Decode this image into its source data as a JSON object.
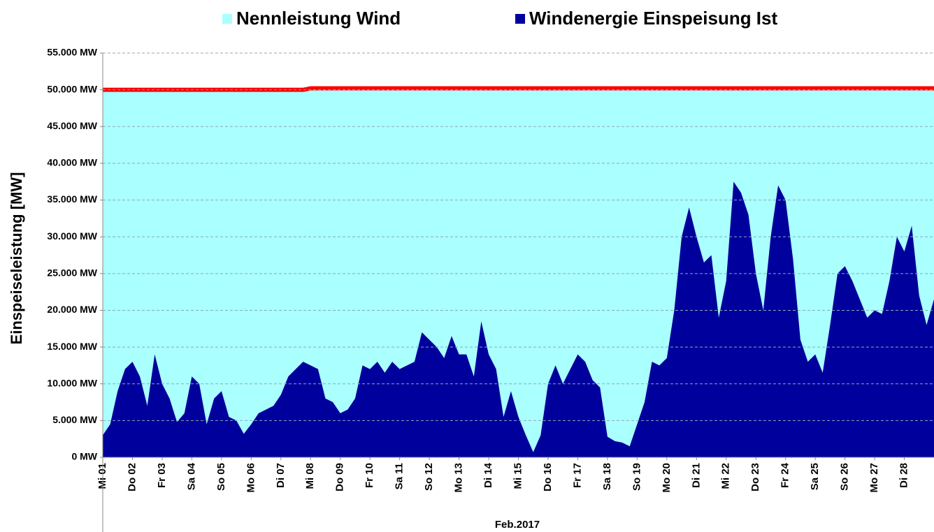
{
  "chart_data": {
    "type": "area",
    "y_label": "Einspeiseleistung  [MW]",
    "x_label": "Feb.2017",
    "x": [
      0,
      0.25,
      0.5,
      0.75,
      1,
      1.25,
      1.5,
      1.75,
      2,
      2.25,
      2.5,
      2.75,
      3,
      3.25,
      3.5,
      3.75,
      4,
      4.25,
      4.5,
      4.75,
      5,
      5.25,
      5.5,
      5.75,
      6,
      6.25,
      6.5,
      6.75,
      7,
      7.25,
      7.5,
      7.75,
      8,
      8.25,
      8.5,
      8.75,
      9,
      9.25,
      9.5,
      9.75,
      10,
      10.25,
      10.5,
      10.75,
      11,
      11.25,
      11.5,
      11.75,
      12,
      12.25,
      12.5,
      12.75,
      13,
      13.25,
      13.5,
      13.75,
      14,
      14.25,
      14.5,
      14.75,
      15,
      15.25,
      15.5,
      15.75,
      16,
      16.25,
      16.5,
      16.75,
      17,
      17.25,
      17.5,
      17.75,
      18,
      18.25,
      18.5,
      18.75,
      19,
      19.25,
      19.5,
      19.75,
      20,
      20.25,
      20.5,
      20.75,
      21,
      21.25,
      21.5,
      21.75,
      22,
      22.25,
      22.5,
      22.75,
      23,
      23.25,
      23.5,
      23.75,
      24,
      24.25,
      24.5,
      24.75,
      25,
      25.25,
      25.5,
      25.75,
      26,
      26.25,
      26.5,
      26.75,
      27,
      27.25,
      27.5,
      27.75,
      28
    ],
    "xlim": [
      0,
      28
    ],
    "xticks": [
      {
        "value": 0,
        "label": "Mi 01"
      },
      {
        "value": 1,
        "label": "Do 02"
      },
      {
        "value": 2,
        "label": "Fr 03"
      },
      {
        "value": 3,
        "label": "Sa 04"
      },
      {
        "value": 4,
        "label": "So 05"
      },
      {
        "value": 5,
        "label": "Mo 06"
      },
      {
        "value": 6,
        "label": "Di 07"
      },
      {
        "value": 7,
        "label": "Mi 08"
      },
      {
        "value": 8,
        "label": "Do 09"
      },
      {
        "value": 9,
        "label": "Fr 10"
      },
      {
        "value": 10,
        "label": "Sa 11"
      },
      {
        "value": 11,
        "label": "So 12"
      },
      {
        "value": 12,
        "label": "Mo 13"
      },
      {
        "value": 13,
        "label": "Di 14"
      },
      {
        "value": 14,
        "label": "Mi 15"
      },
      {
        "value": 15,
        "label": "Do 16"
      },
      {
        "value": 16,
        "label": "Fr 17"
      },
      {
        "value": 17,
        "label": "Sa 18"
      },
      {
        "value": 18,
        "label": "So 19"
      },
      {
        "value": 19,
        "label": "Mo 20"
      },
      {
        "value": 20,
        "label": "Di 21"
      },
      {
        "value": 21,
        "label": "Mi 22"
      },
      {
        "value": 22,
        "label": "Do 23"
      },
      {
        "value": 23,
        "label": "Fr 24"
      },
      {
        "value": 24,
        "label": "Sa 25"
      },
      {
        "value": 25,
        "label": "So 26"
      },
      {
        "value": 26,
        "label": "Mo 27"
      },
      {
        "value": 27,
        "label": "Di 28"
      }
    ],
    "ylim": [
      0,
      55000
    ],
    "yticks": [
      {
        "value": 0,
        "label": "0 MW"
      },
      {
        "value": 5000,
        "label": "5.000 MW"
      },
      {
        "value": 10000,
        "label": "10.000 MW"
      },
      {
        "value": 15000,
        "label": "15.000 MW"
      },
      {
        "value": 20000,
        "label": "20.000 MW"
      },
      {
        "value": 25000,
        "label": "25.000 MW"
      },
      {
        "value": 30000,
        "label": "30.000 MW"
      },
      {
        "value": 35000,
        "label": "35.000 MW"
      },
      {
        "value": 40000,
        "label": "40.000 MW"
      },
      {
        "value": 45000,
        "label": "45.000 MW"
      },
      {
        "value": 50000,
        "label": "50.000 MW"
      },
      {
        "value": 55000,
        "label": "55.000 MW"
      }
    ],
    "grid": true,
    "series": [
      {
        "name": "Nennleistung Wind",
        "color": "#aaffff",
        "line_color": "#ff0000",
        "values": [
          50000,
          50000,
          50000,
          50000,
          50000,
          50000,
          50000,
          50000,
          50000,
          50000,
          50000,
          50000,
          50000,
          50000,
          50000,
          50000,
          50000,
          50000,
          50000,
          50000,
          50000,
          50000,
          50000,
          50000,
          50000,
          50000,
          50000,
          50000,
          50200,
          50200,
          50200,
          50200,
          50200,
          50200,
          50200,
          50200,
          50200,
          50200,
          50200,
          50200,
          50200,
          50200,
          50200,
          50200,
          50200,
          50200,
          50200,
          50200,
          50200,
          50200,
          50200,
          50200,
          50200,
          50200,
          50200,
          50200,
          50200,
          50200,
          50200,
          50200,
          50200,
          50200,
          50200,
          50200,
          50200,
          50200,
          50200,
          50200,
          50200,
          50200,
          50200,
          50200,
          50200,
          50200,
          50200,
          50200,
          50200,
          50200,
          50200,
          50200,
          50200,
          50200,
          50200,
          50200,
          50200,
          50200,
          50200,
          50200,
          50200,
          50200,
          50200,
          50200,
          50200,
          50200,
          50200,
          50200,
          50200,
          50200,
          50200,
          50200,
          50200,
          50200,
          50200,
          50200,
          50200,
          50200,
          50200,
          50200,
          50200,
          50200,
          50200,
          50200,
          50200
        ]
      },
      {
        "name": "Windenergie Einspeisung Ist",
        "color": "#00009c",
        "values": [
          3000,
          4500,
          9000,
          12000,
          13000,
          11000,
          7000,
          14000,
          10000,
          8000,
          4800,
          6000,
          11000,
          10000,
          4500,
          8000,
          9000,
          5500,
          5000,
          3200,
          4500,
          6000,
          6500,
          7000,
          8500,
          11000,
          12000,
          13000,
          12500,
          12000,
          8000,
          7500,
          6000,
          6500,
          8000,
          12500,
          12000,
          13000,
          11500,
          13000,
          12000,
          12500,
          13000,
          17000,
          16000,
          15000,
          13500,
          16500,
          14000,
          14000,
          11000,
          18500,
          14000,
          12000,
          5500,
          9000,
          5500,
          3000,
          700,
          3000,
          10000,
          12500,
          10000,
          12000,
          14000,
          13000,
          10500,
          9500,
          2800,
          2200,
          2000,
          1500,
          4500,
          7500,
          13000,
          12500,
          13500,
          20000,
          30000,
          34000,
          30000,
          26500,
          27500,
          19000,
          24000,
          37500,
          36000,
          33000,
          25000,
          20000,
          30000,
          37000,
          35000,
          27000,
          16000,
          13000,
          14000,
          11500,
          18000,
          25000,
          26000,
          24000,
          21500,
          19000,
          20000,
          19500,
          24000,
          30000,
          28000,
          31500,
          22000,
          18000,
          21500
        ]
      }
    ]
  }
}
